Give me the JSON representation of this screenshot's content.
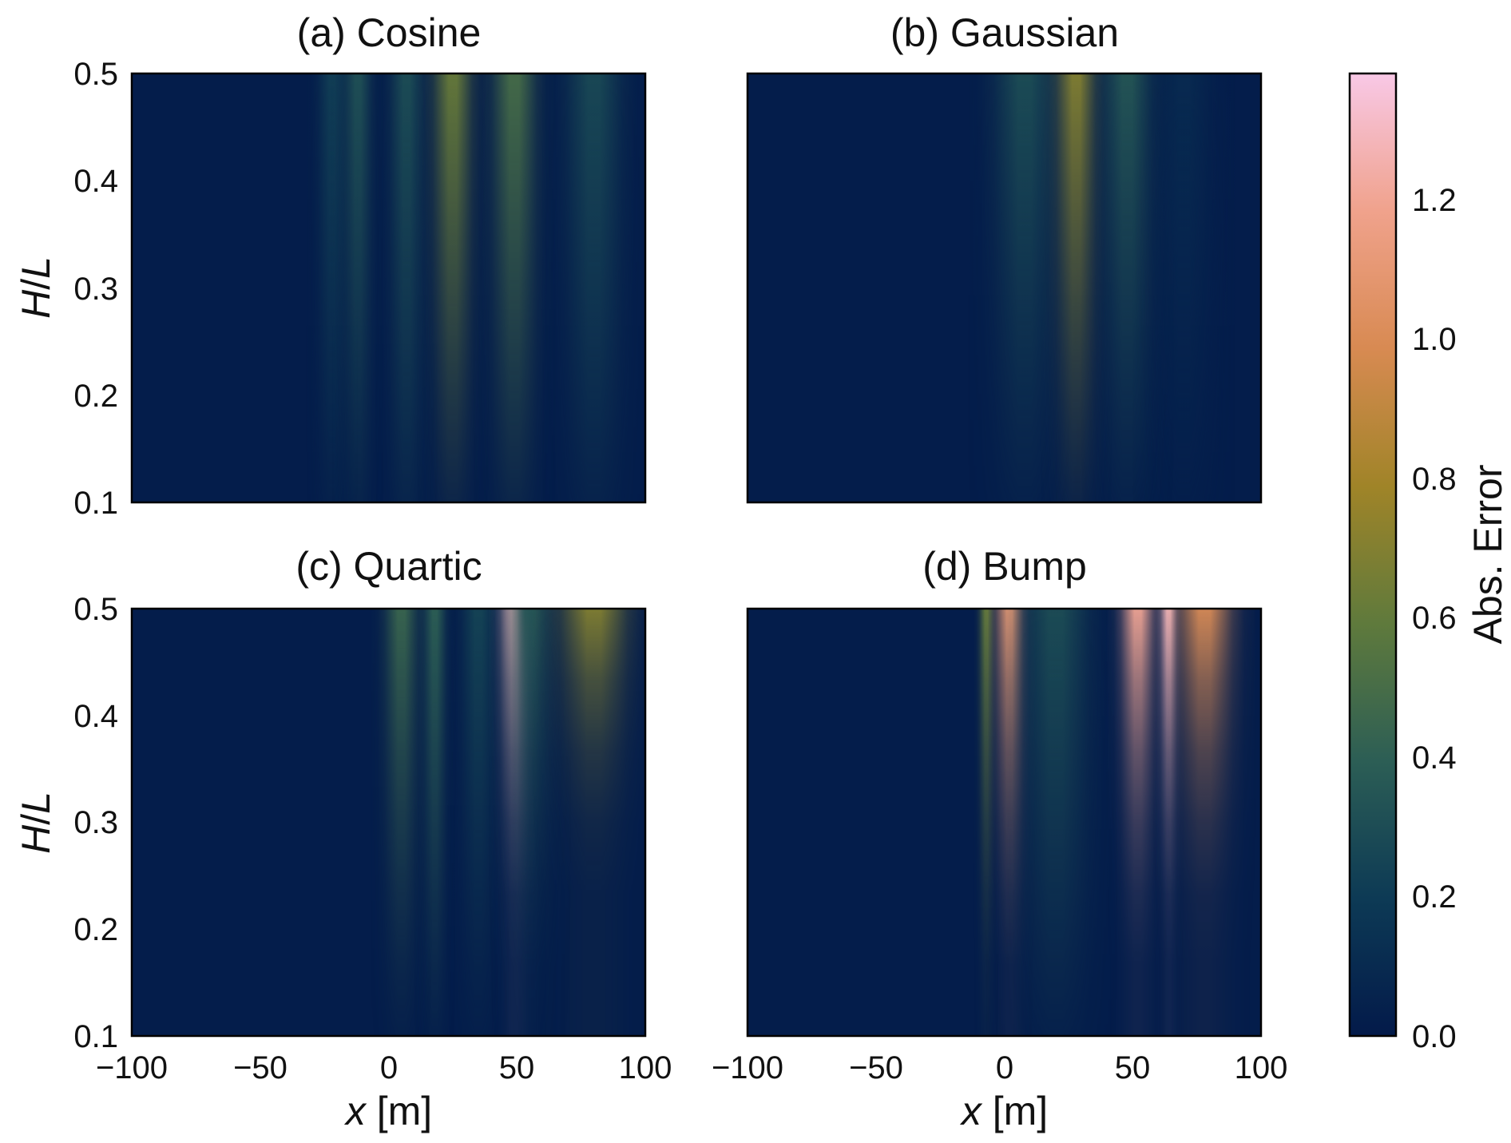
{
  "chart_data": [
    {
      "type": "heatmap",
      "title": "(a) Cosine",
      "xlabel": "",
      "ylabel": "H/L",
      "xlim": [
        -100,
        100
      ],
      "ylim": [
        0.1,
        0.5
      ],
      "xticks": [
        "−100",
        "−50",
        "0",
        "50",
        "100"
      ],
      "yticks": [
        "0.1",
        "0.2",
        "0.3",
        "0.4",
        "0.5"
      ],
      "show_xticks": false,
      "show_yticks": true,
      "bands": [
        {
          "x": -22,
          "w": 5,
          "a": 0.22,
          "g": 1.0
        },
        {
          "x": -12,
          "w": 5,
          "a": 0.32,
          "g": 1.0
        },
        {
          "x": 7,
          "w": 6,
          "a": 0.3,
          "g": 0.9
        },
        {
          "x": 25,
          "w": 7,
          "a": 0.62,
          "g": 1.2
        },
        {
          "x": 49,
          "w": 8,
          "a": 0.5,
          "g": 1.1
        },
        {
          "x": 80,
          "w": 10,
          "a": 0.28,
          "g": 1.0
        }
      ]
    },
    {
      "type": "heatmap",
      "title": "(b) Gaussian",
      "xlabel": "",
      "ylabel": "",
      "xlim": [
        -100,
        100
      ],
      "ylim": [
        0.1,
        0.5
      ],
      "xticks": [
        "−100",
        "−50",
        "0",
        "50",
        "100"
      ],
      "yticks": [
        "0.1",
        "0.2",
        "0.3",
        "0.4",
        "0.5"
      ],
      "show_xticks": false,
      "show_yticks": false,
      "bands": [
        {
          "x": 8,
          "w": 11,
          "a": 0.3,
          "g": 1.2
        },
        {
          "x": 28,
          "w": 7,
          "a": 0.7,
          "g": 1.3
        },
        {
          "x": 48,
          "w": 9,
          "a": 0.35,
          "g": 1.2
        },
        {
          "x": 70,
          "w": 10,
          "a": 0.1,
          "g": 1.0
        }
      ]
    },
    {
      "type": "heatmap",
      "title": "(c) Quartic",
      "xlabel": "x [m]",
      "ylabel": "H/L",
      "xlim": [
        -100,
        100
      ],
      "ylim": [
        0.1,
        0.5
      ],
      "xticks": [
        "−100",
        "−50",
        "0",
        "50",
        "100"
      ],
      "yticks": [
        "0.1",
        "0.2",
        "0.3",
        "0.4",
        "0.5"
      ],
      "show_xticks": true,
      "show_yticks": true,
      "bands": [
        {
          "x": 5,
          "w": 6,
          "a": 0.45,
          "g": 1.6
        },
        {
          "x": 18,
          "w": 4,
          "a": 0.4,
          "g": 1.4
        },
        {
          "x": 35,
          "w": 6,
          "a": 0.25,
          "g": 1.4
        },
        {
          "x": 49,
          "w": 5,
          "a": 1.3,
          "g": 3.0
        },
        {
          "x": 55,
          "w": 8,
          "a": 0.35,
          "g": 2.0
        },
        {
          "x": 80,
          "w": 12,
          "a": 0.7,
          "g": 4.0
        }
      ]
    },
    {
      "type": "heatmap",
      "title": "(d) Bump",
      "xlabel": "x [m]",
      "ylabel": "",
      "xlim": [
        -100,
        100
      ],
      "ylim": [
        0.1,
        0.5
      ],
      "xticks": [
        "−100",
        "−50",
        "0",
        "50",
        "100"
      ],
      "yticks": [
        "0.1",
        "0.2",
        "0.3",
        "0.4",
        "0.5"
      ],
      "show_xticks": true,
      "show_yticks": false,
      "bands": [
        {
          "x": -7,
          "w": 2.5,
          "a": 0.6,
          "g": 2.0
        },
        {
          "x": 2,
          "w": 5,
          "a": 1.1,
          "g": 2.4
        },
        {
          "x": 20,
          "w": 12,
          "a": 0.3,
          "g": 1.2
        },
        {
          "x": 52,
          "w": 6,
          "a": 1.2,
          "g": 2.6
        },
        {
          "x": 64,
          "w": 3,
          "a": 1.3,
          "g": 2.8
        },
        {
          "x": 78,
          "w": 10,
          "a": 1.0,
          "g": 3.0
        }
      ]
    }
  ],
  "colorbar": {
    "label": "Abs. Error",
    "min": 0.0,
    "max": 1.38,
    "ticks": [
      "0.0",
      "0.2",
      "0.4",
      "0.6",
      "0.8",
      "1.0",
      "1.2"
    ],
    "colors": [
      "#031a4a",
      "#0d3a55",
      "#2c5e55",
      "#5f7a3c",
      "#a08428",
      "#d88a52",
      "#f0a28c",
      "#f8c8e6"
    ]
  }
}
